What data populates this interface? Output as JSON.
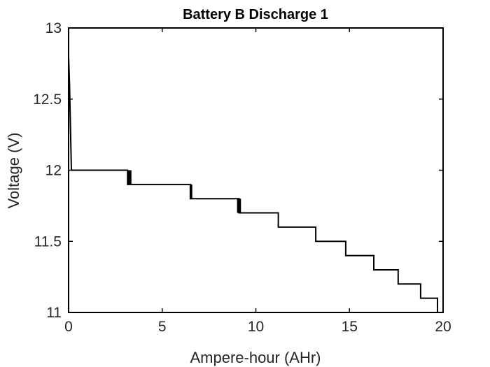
{
  "chart_data": {
    "type": "line",
    "title": "Battery B Discharge 1",
    "xlabel": "Ampere-hour (AHr)",
    "ylabel": "Voltage (V)",
    "xlim": [
      0,
      20
    ],
    "ylim": [
      11,
      13
    ],
    "xticks": [
      "0",
      "5",
      "10",
      "15",
      "20"
    ],
    "yticks": [
      "11",
      "11.5",
      "12",
      "12.5",
      "13"
    ],
    "grid": false,
    "series": [
      {
        "color": "#000000",
        "x": [
          0,
          0.05,
          0.1,
          0.15,
          0.25,
          3.15,
          3.15,
          3.3,
          3.3,
          6.5,
          6.5,
          9.1,
          9.1,
          11.2,
          11.2,
          13.2,
          13.2,
          14.8,
          14.8,
          16.3,
          16.3,
          17.6,
          17.6,
          18.8,
          18.8,
          19.7,
          19.7
        ],
        "y": [
          12.8,
          12.6,
          12.3,
          12.0,
          12.0,
          12.0,
          11.9,
          11.9,
          11.9,
          11.9,
          11.8,
          11.8,
          11.7,
          11.7,
          11.6,
          11.6,
          11.5,
          11.5,
          11.4,
          11.4,
          11.3,
          11.3,
          11.2,
          11.2,
          11.1,
          11.1,
          11.0
        ]
      }
    ],
    "jitter_segments": [
      {
        "x": 3.2,
        "from": 11.9,
        "to": 12.0
      },
      {
        "x": 3.3,
        "from": 11.9,
        "to": 12.0
      },
      {
        "x": 6.55,
        "from": 11.8,
        "to": 11.9
      },
      {
        "x": 9.05,
        "from": 11.7,
        "to": 11.8
      },
      {
        "x": 9.15,
        "from": 11.7,
        "to": 11.8
      }
    ]
  }
}
